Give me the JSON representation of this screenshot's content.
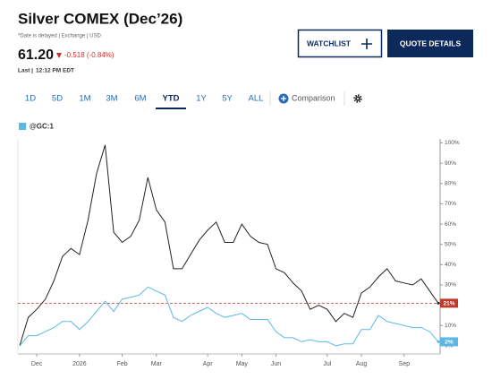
{
  "header": {
    "title": "Silver COMEX (Dec’26)",
    "note": "*Date is delayed | Exchange | USD",
    "price": "61.20",
    "change": "-0.518 (-0.84%)",
    "last_label": "Last |",
    "last_time": "12:12 PM EDT"
  },
  "buttons": {
    "watchlist": "WATCHLIST",
    "quote": "QUOTE DETAILS"
  },
  "range_tabs": {
    "tabs": [
      "1D",
      "5D",
      "1M",
      "3M",
      "6M",
      "YTD",
      "1Y",
      "5Y",
      "ALL"
    ],
    "active": "YTD",
    "comparison": "Comparison"
  },
  "chart_data": {
    "type": "line",
    "categories": [
      null,
      null,
      "Dec",
      null,
      null,
      null,
      null,
      "2026",
      null,
      null,
      null,
      null,
      "Feb",
      null,
      null,
      null,
      "Mar",
      null,
      null,
      null,
      null,
      null,
      "Apr",
      null,
      null,
      null,
      "May",
      null,
      null,
      null,
      "Jun",
      null,
      null,
      null,
      null,
      null,
      "Jul",
      null,
      null,
      null,
      "Aug",
      null,
      null,
      null,
      null,
      "Sep",
      null,
      null,
      null,
      null
    ],
    "series": [
      {
        "color": "#222222",
        "values": [
          0,
          14,
          18,
          23,
          32,
          44,
          48,
          45,
          62,
          85,
          99,
          56,
          51,
          54,
          62,
          83,
          67,
          61,
          38,
          38,
          45,
          52,
          57,
          61,
          51,
          51,
          60,
          54,
          51,
          50,
          38,
          36,
          31,
          27,
          18,
          20,
          18,
          12,
          16,
          14,
          26,
          29,
          34,
          38,
          32,
          31,
          30,
          33,
          27,
          21
        ],
        "value_labels": [
          null,
          null,
          null,
          null,
          null,
          null,
          null,
          null,
          null,
          null,
          null,
          null,
          null,
          null,
          null,
          null,
          null,
          null,
          null,
          null,
          null,
          null,
          null,
          null,
          null,
          null,
          null,
          null,
          null,
          null,
          null,
          null,
          null,
          null,
          null,
          null,
          null,
          null,
          null,
          null,
          null,
          null,
          null,
          null,
          null,
          null,
          null,
          null,
          null,
          "21%"
        ],
        "tag_color": "#c0392b"
      },
      {
        "name": "@GC:1",
        "color": "#5bb8e6",
        "values": [
          0,
          5,
          5,
          7,
          9,
          12,
          12,
          8,
          12,
          17,
          22,
          17,
          23,
          24,
          25,
          29,
          27,
          25,
          14,
          12,
          15,
          17,
          19,
          16,
          14,
          15,
          16,
          13,
          13,
          13,
          7,
          4,
          4,
          2,
          3,
          2,
          2,
          0,
          1,
          1,
          8,
          8,
          15,
          12,
          11,
          10,
          9,
          9,
          7,
          2
        ],
        "value_labels": [
          null,
          null,
          null,
          null,
          null,
          null,
          null,
          null,
          null,
          null,
          null,
          null,
          null,
          null,
          null,
          null,
          null,
          null,
          null,
          null,
          null,
          null,
          null,
          null,
          null,
          null,
          null,
          null,
          null,
          null,
          null,
          null,
          null,
          null,
          null,
          null,
          null,
          null,
          null,
          null,
          null,
          null,
          null,
          null,
          null,
          null,
          null,
          null,
          null,
          "2%"
        ],
        "tag_color": "#5bb8e6"
      }
    ],
    "ylim": [
      -4,
      102
    ],
    "yticks": [
      {
        "value": 0,
        "label": "0%"
      },
      {
        "value": 10,
        "label": "10%"
      },
      {
        "value": 20,
        "label": "20%"
      },
      {
        "value": 30,
        "label": "30%"
      },
      {
        "value": 40,
        "label": "40%"
      },
      {
        "value": 50,
        "label": "50%"
      },
      {
        "value": 60,
        "label": "60%"
      },
      {
        "value": 70,
        "label": "70%"
      },
      {
        "value": 80,
        "label": "80%"
      },
      {
        "value": 90,
        "label": "90%"
      },
      {
        "value": 100,
        "label": "100%"
      }
    ],
    "y_axis_side": "right"
  }
}
